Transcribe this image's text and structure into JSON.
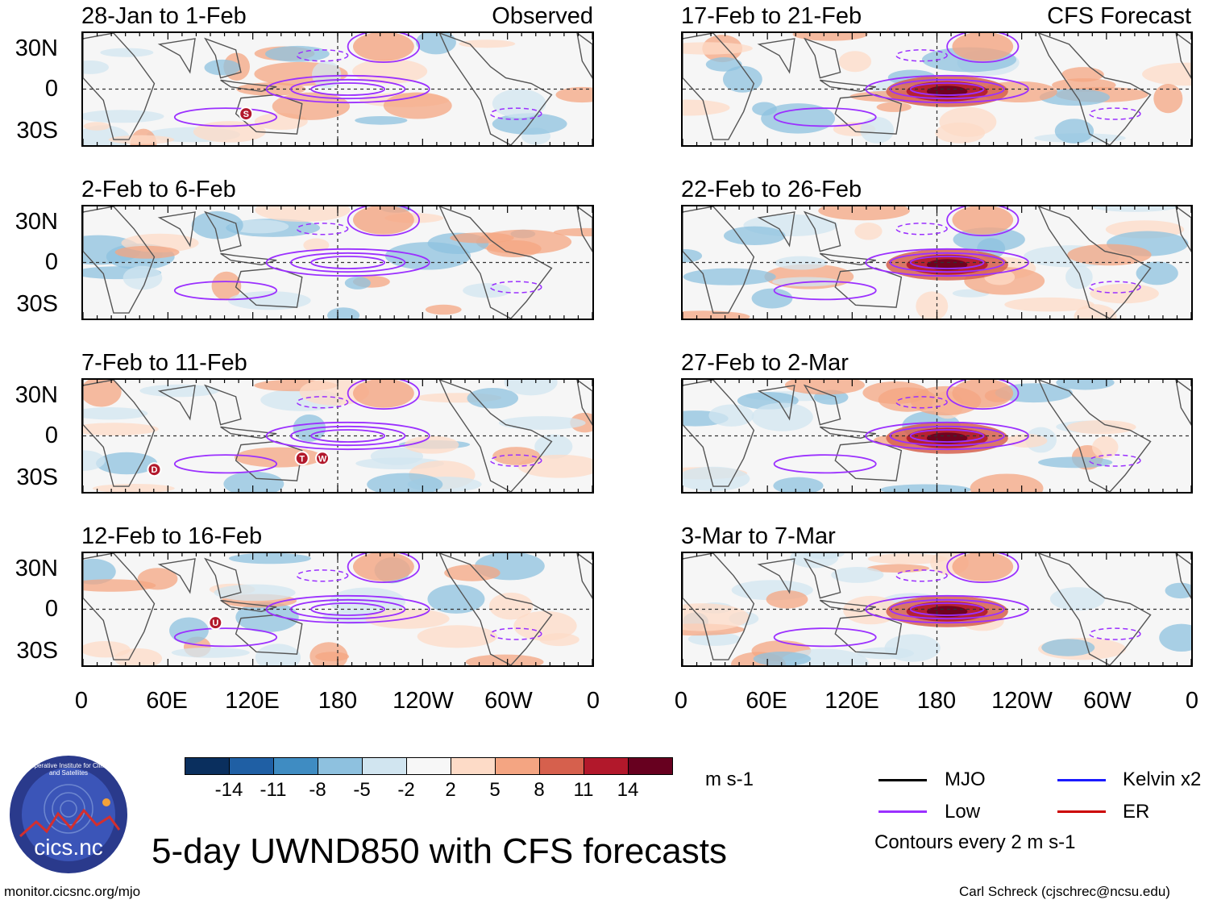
{
  "observed_label": "Observed",
  "forecast_label": "CFS Forecast",
  "lat_labels": [
    "30N",
    "0",
    "30S"
  ],
  "lon_labels": [
    "0",
    "60E",
    "120E",
    "180",
    "120W",
    "60W",
    "0"
  ],
  "panels_left": [
    {
      "title": "28-Jan to 1-Feb",
      "storms": [
        "S"
      ]
    },
    {
      "title": "2-Feb to 6-Feb",
      "storms": []
    },
    {
      "title": "7-Feb to 11-Feb",
      "storms": [
        "D",
        "T",
        "W"
      ]
    },
    {
      "title": "12-Feb to 16-Feb",
      "storms": [
        "U"
      ]
    }
  ],
  "panels_right": [
    {
      "title": "17-Feb to 21-Feb"
    },
    {
      "title": "22-Feb to 26-Feb"
    },
    {
      "title": "27-Feb to 2-Mar"
    },
    {
      "title": "3-Mar to 7-Mar"
    }
  ],
  "colorbar": {
    "colors": [
      "#0a2f5e",
      "#1f5fa4",
      "#3f8cc2",
      "#8ec1df",
      "#d1e5f0",
      "#f7f7f7",
      "#fddbc7",
      "#f4a582",
      "#d6604d",
      "#b2182b",
      "#67001f"
    ],
    "labels": [
      "-14",
      "-11",
      "-8",
      "-5",
      "-2",
      "2",
      "5",
      "8",
      "11",
      "14"
    ],
    "units": "m s-1"
  },
  "legend": {
    "items": [
      {
        "label": "MJO",
        "color": "#000000"
      },
      {
        "label": "Kelvin x2",
        "color": "#1a1aff"
      },
      {
        "label": "Low",
        "color": "#9b30ff"
      },
      {
        "label": "ER",
        "color": "#cc0000"
      }
    ],
    "note": "Contours every 2 m s-1"
  },
  "title": "5-day UWND850 with CFS forecasts",
  "logo_text": "cics.nc",
  "logo_ring_text": "Cooperative Institute for Climate and Satellites",
  "footer_left": "monitor.cicsnc.org/mjo",
  "footer_right": "Carl Schreck (cjschrec@ncsu.edu)"
}
